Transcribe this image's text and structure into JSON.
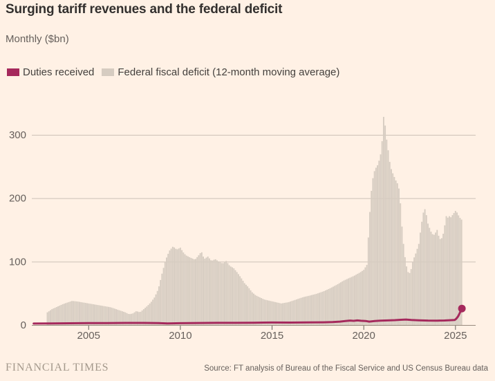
{
  "title": "Surging tariff revenues and the federal deficit",
  "subtitle": "Monthly ($bn)",
  "legend": [
    {
      "label": "Duties received",
      "color": "#a5295c"
    },
    {
      "label": "Federal fiscal deficit (12-month moving average)",
      "color": "#d6ccc1"
    }
  ],
  "footer": {
    "brand": "FINANCIAL TIMES",
    "source": "Source: FT analysis of Bureau of the Fiscal Service and US Census Bureau data"
  },
  "colors": {
    "background": "#fff1e5",
    "title_text": "#33302e",
    "muted_text": "#66605c",
    "gridline": "#ccc1b6",
    "baseline": "#96897c",
    "area_fill": "#d6ccc1",
    "line_stroke": "#a5295c"
  },
  "chart_data": {
    "type": "area",
    "title": "Surging tariff revenues and the federal deficit",
    "xlabel": "",
    "ylabel": "Monthly ($bn)",
    "xlim": [
      2001.9,
      2026.1
    ],
    "ylim": [
      0,
      300
    ],
    "yticks": [
      0,
      100,
      200,
      300
    ],
    "xticks": [
      2005,
      2010,
      2015,
      2020,
      2025
    ],
    "grid": true,
    "legend_position": "top-left",
    "series": [
      {
        "name": "Federal fiscal deficit (12-month moving average)",
        "type": "area",
        "color": "#d6ccc1",
        "points": [
          [
            2002.75,
            20
          ],
          [
            2003.0,
            25
          ],
          [
            2003.3,
            29
          ],
          [
            2003.6,
            33
          ],
          [
            2003.9,
            36
          ],
          [
            2004.1,
            38
          ],
          [
            2004.4,
            37
          ],
          [
            2004.8,
            35
          ],
          [
            2005.0,
            34
          ],
          [
            2005.4,
            32
          ],
          [
            2005.8,
            30
          ],
          [
            2006.2,
            28
          ],
          [
            2006.6,
            24
          ],
          [
            2007.0,
            20
          ],
          [
            2007.2,
            17
          ],
          [
            2007.4,
            18
          ],
          [
            2007.6,
            22
          ],
          [
            2007.8,
            20
          ],
          [
            2008.0,
            25
          ],
          [
            2008.2,
            30
          ],
          [
            2008.4,
            36
          ],
          [
            2008.6,
            44
          ],
          [
            2008.8,
            57
          ],
          [
            2009.0,
            81
          ],
          [
            2009.2,
            103
          ],
          [
            2009.4,
            117
          ],
          [
            2009.6,
            124
          ],
          [
            2009.8,
            119
          ],
          [
            2010.0,
            122
          ],
          [
            2010.15,
            115
          ],
          [
            2010.3,
            110
          ],
          [
            2010.5,
            107
          ],
          [
            2010.8,
            103
          ],
          [
            2011.0,
            110
          ],
          [
            2011.15,
            116
          ],
          [
            2011.3,
            104
          ],
          [
            2011.5,
            108
          ],
          [
            2011.7,
            101
          ],
          [
            2011.9,
            104
          ],
          [
            2012.1,
            100
          ],
          [
            2012.3,
            97
          ],
          [
            2012.5,
            101
          ],
          [
            2012.7,
            93
          ],
          [
            2012.9,
            90
          ],
          [
            2013.1,
            83
          ],
          [
            2013.3,
            75
          ],
          [
            2013.5,
            66
          ],
          [
            2013.7,
            60
          ],
          [
            2013.9,
            52
          ],
          [
            2014.1,
            47
          ],
          [
            2014.3,
            44
          ],
          [
            2014.6,
            40
          ],
          [
            2014.9,
            38
          ],
          [
            2015.2,
            36
          ],
          [
            2015.5,
            34
          ],
          [
            2015.9,
            36
          ],
          [
            2016.3,
            40
          ],
          [
            2016.7,
            44
          ],
          [
            2017.0,
            46
          ],
          [
            2017.4,
            49
          ],
          [
            2017.8,
            53
          ],
          [
            2018.1,
            57
          ],
          [
            2018.5,
            63
          ],
          [
            2018.9,
            70
          ],
          [
            2019.2,
            74
          ],
          [
            2019.5,
            78
          ],
          [
            2019.8,
            83
          ],
          [
            2020.0,
            87
          ],
          [
            2020.17,
            95
          ],
          [
            2020.3,
            165
          ],
          [
            2020.45,
            225
          ],
          [
            2020.6,
            245
          ],
          [
            2020.75,
            252
          ],
          [
            2020.9,
            265
          ],
          [
            2021.0,
            290
          ],
          [
            2021.05,
            305
          ],
          [
            2021.1,
            340
          ],
          [
            2021.2,
            302
          ],
          [
            2021.3,
            283
          ],
          [
            2021.45,
            250
          ],
          [
            2021.6,
            238
          ],
          [
            2021.75,
            228
          ],
          [
            2021.9,
            220
          ],
          [
            2022.0,
            192
          ],
          [
            2022.1,
            148
          ],
          [
            2022.2,
            118
          ],
          [
            2022.3,
            96
          ],
          [
            2022.45,
            80
          ],
          [
            2022.55,
            84
          ],
          [
            2022.7,
            103
          ],
          [
            2022.85,
            114
          ],
          [
            2023.0,
            128
          ],
          [
            2023.15,
            160
          ],
          [
            2023.3,
            186
          ],
          [
            2023.4,
            176
          ],
          [
            2023.5,
            160
          ],
          [
            2023.65,
            148
          ],
          [
            2023.8,
            141
          ],
          [
            2023.9,
            145
          ],
          [
            2024.0,
            150
          ],
          [
            2024.1,
            139
          ],
          [
            2024.2,
            134
          ],
          [
            2024.3,
            140
          ],
          [
            2024.4,
            152
          ],
          [
            2024.47,
            174
          ],
          [
            2024.55,
            168
          ],
          [
            2024.65,
            172
          ],
          [
            2024.75,
            170
          ],
          [
            2024.9,
            176
          ],
          [
            2025.0,
            180
          ],
          [
            2025.1,
            177
          ],
          [
            2025.2,
            171
          ],
          [
            2025.3,
            167
          ],
          [
            2025.4,
            165
          ]
        ]
      },
      {
        "name": "Duties received",
        "type": "line",
        "color": "#a5295c",
        "end_dot": true,
        "points": [
          [
            2002.0,
            2.3
          ],
          [
            2003.0,
            2.4
          ],
          [
            2004.0,
            2.7
          ],
          [
            2005.0,
            2.9
          ],
          [
            2006.0,
            3.1
          ],
          [
            2007.0,
            3.3
          ],
          [
            2008.0,
            3.3
          ],
          [
            2008.8,
            3.0
          ],
          [
            2009.3,
            2.4
          ],
          [
            2010.0,
            2.8
          ],
          [
            2011.0,
            3.2
          ],
          [
            2012.0,
            3.4
          ],
          [
            2013.0,
            3.4
          ],
          [
            2014.0,
            3.6
          ],
          [
            2015.0,
            3.9
          ],
          [
            2016.0,
            3.8
          ],
          [
            2017.0,
            4.0
          ],
          [
            2017.8,
            4.2
          ],
          [
            2018.3,
            4.6
          ],
          [
            2018.7,
            5.4
          ],
          [
            2019.0,
            6.2
          ],
          [
            2019.25,
            7.0
          ],
          [
            2019.45,
            6.5
          ],
          [
            2019.65,
            7.2
          ],
          [
            2019.85,
            6.7
          ],
          [
            2020.1,
            6.3
          ],
          [
            2020.3,
            5.4
          ],
          [
            2020.6,
            6.2
          ],
          [
            2020.9,
            6.8
          ],
          [
            2021.3,
            7.2
          ],
          [
            2021.7,
            7.6
          ],
          [
            2022.0,
            8.2
          ],
          [
            2022.3,
            8.6
          ],
          [
            2022.6,
            8.0
          ],
          [
            2023.0,
            7.4
          ],
          [
            2023.5,
            7.0
          ],
          [
            2024.0,
            6.9
          ],
          [
            2024.4,
            7.1
          ],
          [
            2024.96,
            8.0
          ],
          [
            2025.05,
            10
          ],
          [
            2025.15,
            14
          ],
          [
            2025.25,
            20
          ],
          [
            2025.35,
            26
          ]
        ]
      }
    ]
  }
}
